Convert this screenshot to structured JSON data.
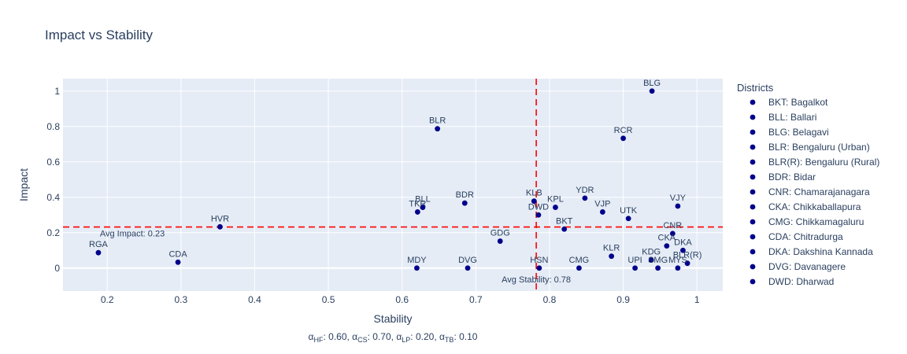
{
  "chart_data": {
    "type": "scatter",
    "title": "Impact vs Stability",
    "xlabel": "Stability",
    "ylabel": "Impact",
    "xlim": [
      0.14,
      1.035
    ],
    "ylim": [
      -0.13,
      1.07
    ],
    "x_ticks": [
      0.2,
      0.3,
      0.4,
      0.5,
      0.6,
      0.7,
      0.8,
      0.9,
      1
    ],
    "x_tick_labels": [
      "0.2",
      "0.3",
      "0.4",
      "0.5",
      "0.6",
      "0.7",
      "0.8",
      "0.9",
      "1"
    ],
    "y_ticks": [
      0,
      0.2,
      0.4,
      0.6,
      0.8,
      1
    ],
    "y_tick_labels": [
      "0",
      "0.2",
      "0.4",
      "0.6",
      "0.8",
      "1"
    ],
    "grid": true,
    "marker_color": "#00008b",
    "plot_bg": "#e5ecf6",
    "avg_line_color": "#ff0000",
    "avg_stability": {
      "value": 0.782,
      "label": "Avg Stability: 0.78"
    },
    "avg_impact": {
      "value": 0.232,
      "label": "Avg Impact: 0.23"
    },
    "points": [
      {
        "label": "BLG",
        "x": 0.939,
        "y": 1.0
      },
      {
        "label": "BLR",
        "x": 0.648,
        "y": 0.787
      },
      {
        "label": "RCR",
        "x": 0.9,
        "y": 0.733
      },
      {
        "label": "KLB",
        "x": 0.779,
        "y": 0.378
      },
      {
        "label": "YDR",
        "x": 0.848,
        "y": 0.395
      },
      {
        "label": "BDR",
        "x": 0.685,
        "y": 0.367
      },
      {
        "label": "VJY",
        "x": 0.974,
        "y": 0.35
      },
      {
        "label": "BLL",
        "x": 0.628,
        "y": 0.343
      },
      {
        "label": "KPL",
        "x": 0.808,
        "y": 0.343
      },
      {
        "label": "TKR",
        "x": 0.621,
        "y": 0.317
      },
      {
        "label": "VJP",
        "x": 0.872,
        "y": 0.317
      },
      {
        "label": "DWD",
        "x": 0.785,
        "y": 0.3
      },
      {
        "label": "UTK",
        "x": 0.907,
        "y": 0.28
      },
      {
        "label": "HVR",
        "x": 0.353,
        "y": 0.233
      },
      {
        "label": "BKT",
        "x": 0.82,
        "y": 0.22
      },
      {
        "label": "CNR",
        "x": 0.967,
        "y": 0.195
      },
      {
        "label": "GDG",
        "x": 0.733,
        "y": 0.152
      },
      {
        "label": "CKA",
        "x": 0.959,
        "y": 0.125
      },
      {
        "label": "DKA",
        "x": 0.981,
        "y": 0.1
      },
      {
        "label": "RGA",
        "x": 0.188,
        "y": 0.087
      },
      {
        "label": "KLR",
        "x": 0.884,
        "y": 0.067
      },
      {
        "label": "KDG",
        "x": 0.938,
        "y": 0.045
      },
      {
        "label": "CDA",
        "x": 0.296,
        "y": 0.033
      },
      {
        "label": "BLR(R)",
        "x": 0.987,
        "y": 0.027
      },
      {
        "label": "MDY",
        "x": 0.62,
        "y": 0.0
      },
      {
        "label": "DVG",
        "x": 0.689,
        "y": 0.0
      },
      {
        "label": "HSN",
        "x": 0.786,
        "y": 0.0
      },
      {
        "label": "CMG",
        "x": 0.84,
        "y": 0.0
      },
      {
        "label": "UPI",
        "x": 0.916,
        "y": 0.0
      },
      {
        "label": "SMG",
        "x": 0.947,
        "y": 0.0
      },
      {
        "label": "MYS",
        "x": 0.974,
        "y": 0.0
      }
    ],
    "legend": {
      "title": "Districts",
      "position": "right",
      "entries": [
        "BKT: Bagalkot",
        "BLL: Ballari",
        "BLG: Belagavi",
        "BLR: Bengaluru (Urban)",
        "BLR(R): Bengaluru (Rural)",
        "BDR: Bidar",
        "CNR: Chamarajanagara",
        "CKA: Chikkaballapura",
        "CMG: Chikkamagaluru",
        "CDA: Chitradurga",
        "DKA: Dakshina Kannada",
        "DVG: Davanagere",
        "DWD: Dharwad"
      ]
    },
    "params_annotation": [
      {
        "symbol": "α",
        "sub": "HF",
        "value": "0.60"
      },
      {
        "symbol": "α",
        "sub": "CS",
        "value": "0.70"
      },
      {
        "symbol": "α",
        "sub": "LP",
        "value": "0.20"
      },
      {
        "symbol": "α",
        "sub": "TB",
        "value": "0.10"
      }
    ]
  }
}
